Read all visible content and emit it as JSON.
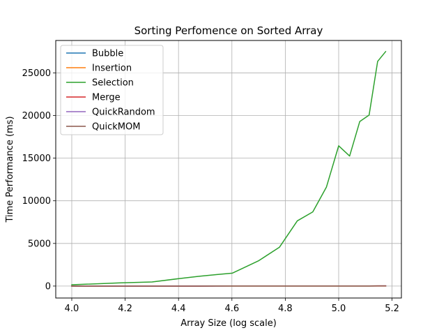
{
  "chart_data": {
    "type": "line",
    "title": "Sorting Perfomence on Sorted Array",
    "xlabel": "Array Size (log scale)",
    "ylabel": "Time Performance (ms)",
    "xlim": [
      3.94,
      5.235
    ],
    "ylim": [
      -1400,
      28800
    ],
    "xticks": [
      4.0,
      4.2,
      4.4,
      4.6,
      4.8,
      5.0,
      5.2
    ],
    "xtick_labels": [
      "4.0",
      "4.2",
      "4.4",
      "4.6",
      "4.8",
      "5.0",
      "5.2"
    ],
    "yticks": [
      0,
      5000,
      10000,
      15000,
      20000,
      25000
    ],
    "ytick_labels": [
      "0",
      "5000",
      "10000",
      "15000",
      "20000",
      "25000"
    ],
    "grid": true,
    "legend_position": "top-left",
    "x": [
      4.0,
      4.176,
      4.301,
      4.398,
      4.477,
      4.544,
      4.602,
      4.699,
      4.778,
      4.845,
      4.903,
      4.954,
      5.0,
      5.041,
      5.079,
      5.114,
      5.146,
      5.176
    ],
    "series": [
      {
        "name": "Bubble",
        "color": "#1f77b4",
        "values": [
          0,
          0,
          1,
          1,
          1,
          2,
          2,
          2,
          3,
          3,
          4,
          4,
          5,
          5,
          6,
          6,
          7,
          8
        ]
      },
      {
        "name": "Insertion",
        "color": "#ff7f0e",
        "values": [
          0,
          0,
          0,
          0,
          0,
          0,
          0,
          0,
          0,
          0,
          0,
          0,
          0,
          0,
          1,
          1,
          1,
          1
        ]
      },
      {
        "name": "Selection",
        "color": "#2ca02c",
        "values": [
          150,
          370,
          480,
          860,
          1150,
          1350,
          1520,
          2950,
          4550,
          7650,
          8700,
          11600,
          16450,
          15250,
          19300,
          20050,
          26350,
          27500
        ]
      },
      {
        "name": "Merge",
        "color": "#d62728",
        "values": [
          2,
          3,
          4,
          5,
          6,
          7,
          8,
          9,
          10,
          11,
          12,
          13,
          14,
          15,
          16,
          17,
          18,
          19
        ]
      },
      {
        "name": "QuickRandom",
        "color": "#9467bd",
        "values": [
          1,
          2,
          3,
          4,
          5,
          6,
          7,
          8,
          9,
          10,
          11,
          12,
          13,
          14,
          15,
          16,
          17,
          18
        ]
      },
      {
        "name": "QuickMOM",
        "color": "#8c564b",
        "values": [
          2,
          3,
          4,
          5,
          6,
          7,
          8,
          9,
          10,
          11,
          12,
          13,
          14,
          15,
          16,
          17,
          18,
          19
        ]
      }
    ]
  }
}
